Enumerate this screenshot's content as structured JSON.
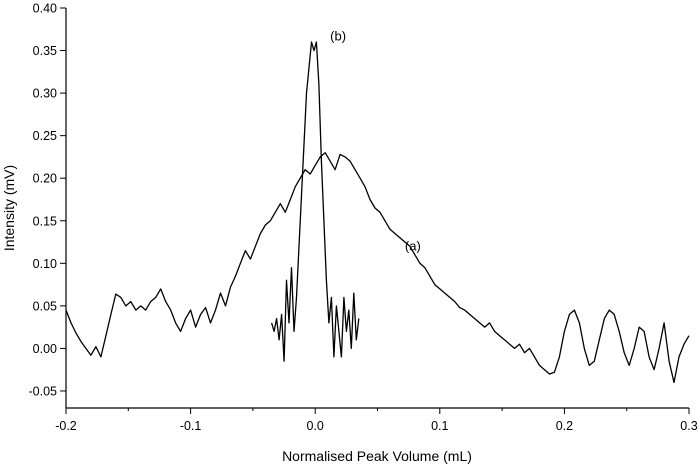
{
  "chart_data": {
    "type": "line",
    "title": "",
    "xlabel": "Normalised Peak Volume (mL)",
    "ylabel": "Intensity (mV)",
    "xlim": [
      -0.2,
      0.3
    ],
    "ylim": [
      -0.07,
      0.4
    ],
    "x_ticks": [
      -0.2,
      -0.1,
      0.0,
      0.1,
      0.2,
      0.3
    ],
    "x_tick_labels": [
      "-0.2",
      "-0.1",
      "0.0",
      "0.1",
      "0.2",
      "0.3"
    ],
    "y_ticks": [
      -0.05,
      0.0,
      0.05,
      0.1,
      0.15,
      0.2,
      0.25,
      0.3,
      0.35,
      0.4
    ],
    "y_tick_labels": [
      "-0.05",
      "0.00",
      "0.05",
      "0.10",
      "0.15",
      "0.20",
      "0.25",
      "0.30",
      "0.35",
      "0.40"
    ],
    "grid": false,
    "legend": "none",
    "series": [
      {
        "label": "(a)",
        "label_at": [
          0.072,
          0.115
        ],
        "x": [
          -0.2,
          -0.196,
          -0.192,
          -0.188,
          -0.184,
          -0.18,
          -0.176,
          -0.172,
          -0.168,
          -0.164,
          -0.16,
          -0.156,
          -0.152,
          -0.148,
          -0.144,
          -0.14,
          -0.136,
          -0.132,
          -0.128,
          -0.124,
          -0.12,
          -0.116,
          -0.112,
          -0.108,
          -0.104,
          -0.1,
          -0.096,
          -0.092,
          -0.088,
          -0.084,
          -0.08,
          -0.076,
          -0.072,
          -0.068,
          -0.064,
          -0.06,
          -0.056,
          -0.052,
          -0.048,
          -0.044,
          -0.04,
          -0.036,
          -0.032,
          -0.028,
          -0.024,
          -0.02,
          -0.016,
          -0.012,
          -0.008,
          -0.004,
          0.0,
          0.004,
          0.008,
          0.012,
          0.016,
          0.02,
          0.024,
          0.028,
          0.032,
          0.036,
          0.04,
          0.044,
          0.048,
          0.052,
          0.056,
          0.06,
          0.064,
          0.068,
          0.072,
          0.076,
          0.08,
          0.084,
          0.088,
          0.092,
          0.096,
          0.1,
          0.104,
          0.108,
          0.112,
          0.116,
          0.12,
          0.124,
          0.128,
          0.132,
          0.136,
          0.14,
          0.144,
          0.148,
          0.152,
          0.156,
          0.16,
          0.164,
          0.168,
          0.172,
          0.176,
          0.18,
          0.184,
          0.188,
          0.192,
          0.196,
          0.2,
          0.204,
          0.208,
          0.212,
          0.216,
          0.22,
          0.224,
          0.228,
          0.232,
          0.236,
          0.24,
          0.244,
          0.248,
          0.252,
          0.256,
          0.26,
          0.264,
          0.268,
          0.272,
          0.276,
          0.28,
          0.284,
          0.288,
          0.292,
          0.296,
          0.3
        ],
        "y": [
          0.045,
          0.03,
          0.018,
          0.008,
          0.0,
          -0.008,
          0.002,
          -0.01,
          0.015,
          0.04,
          0.064,
          0.06,
          0.05,
          0.055,
          0.045,
          0.05,
          0.045,
          0.055,
          0.06,
          0.07,
          0.055,
          0.045,
          0.03,
          0.02,
          0.035,
          0.045,
          0.025,
          0.04,
          0.048,
          0.03,
          0.045,
          0.065,
          0.05,
          0.072,
          0.085,
          0.1,
          0.115,
          0.105,
          0.12,
          0.135,
          0.145,
          0.15,
          0.16,
          0.17,
          0.16,
          0.175,
          0.19,
          0.2,
          0.21,
          0.205,
          0.215,
          0.225,
          0.23,
          0.22,
          0.21,
          0.228,
          0.225,
          0.22,
          0.21,
          0.2,
          0.19,
          0.175,
          0.165,
          0.16,
          0.15,
          0.14,
          0.135,
          0.13,
          0.125,
          0.12,
          0.11,
          0.1,
          0.095,
          0.085,
          0.075,
          0.07,
          0.065,
          0.06,
          0.055,
          0.048,
          0.045,
          0.04,
          0.035,
          0.03,
          0.025,
          0.03,
          0.02,
          0.015,
          0.01,
          0.005,
          0.0,
          0.005,
          -0.005,
          0.0,
          -0.01,
          -0.02,
          -0.025,
          -0.03,
          -0.028,
          -0.01,
          0.02,
          0.04,
          0.045,
          0.03,
          0.0,
          -0.02,
          -0.015,
          0.01,
          0.035,
          0.045,
          0.04,
          0.02,
          -0.005,
          -0.02,
          0.0,
          0.025,
          0.02,
          -0.01,
          -0.025,
          0.0,
          0.03,
          -0.015,
          -0.04,
          -0.01,
          0.005,
          0.015
        ]
      },
      {
        "label": "(b)",
        "label_at": [
          0.012,
          0.362
        ],
        "x": [
          -0.035,
          -0.033,
          -0.031,
          -0.029,
          -0.027,
          -0.025,
          -0.023,
          -0.021,
          -0.019,
          -0.017,
          -0.015,
          -0.013,
          -0.011,
          -0.009,
          -0.007,
          -0.005,
          -0.003,
          -0.001,
          0.001,
          0.003,
          0.005,
          0.007,
          0.009,
          0.011,
          0.013,
          0.015,
          0.017,
          0.019,
          0.021,
          0.023,
          0.025,
          0.027,
          0.029,
          0.031,
          0.033,
          0.035
        ],
        "y": [
          0.03,
          0.02,
          0.035,
          0.01,
          0.04,
          -0.015,
          0.08,
          0.03,
          0.095,
          0.02,
          0.06,
          0.12,
          0.18,
          0.24,
          0.3,
          0.33,
          0.36,
          0.35,
          0.36,
          0.31,
          0.22,
          0.15,
          0.08,
          0.03,
          0.06,
          -0.01,
          0.05,
          0.02,
          -0.01,
          0.06,
          0.02,
          0.045,
          0.0,
          0.065,
          0.01,
          0.035
        ]
      }
    ]
  }
}
